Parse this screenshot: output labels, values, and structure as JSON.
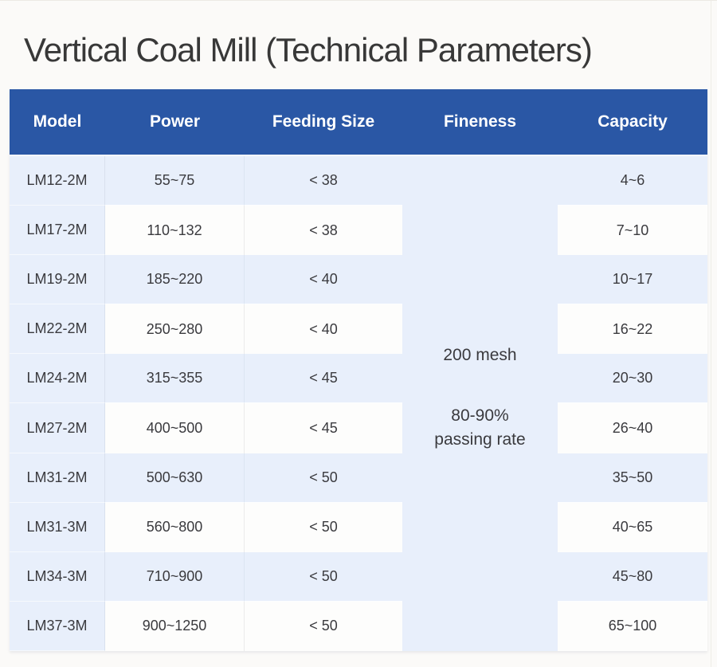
{
  "page": {
    "title": "Vertical Coal Mill (Technical Parameters)"
  },
  "colors": {
    "header_bg": "#2a57a5",
    "header_text": "#ffffff",
    "row_blue": "#e8effb",
    "row_white": "#fdfdfc",
    "body_text": "#3a3a3e",
    "title_text": "#383838"
  },
  "table": {
    "headers": [
      "Model",
      "Power",
      "Feeding Size",
      "Fineness",
      "Capacity"
    ],
    "fineness": {
      "mesh": "200 mesh",
      "passing_line1": "80-90%",
      "passing_line2": "passing rate"
    },
    "rows": [
      {
        "model": "LM12-2M",
        "power": "55~75",
        "feeding_size": "< 38",
        "capacity": "4~6"
      },
      {
        "model": "LM17-2M",
        "power": "110~132",
        "feeding_size": "< 38",
        "capacity": "7~10"
      },
      {
        "model": "LM19-2M",
        "power": "185~220",
        "feeding_size": "< 40",
        "capacity": "10~17"
      },
      {
        "model": "LM22-2M",
        "power": "250~280",
        "feeding_size": "< 40",
        "capacity": "16~22"
      },
      {
        "model": "LM24-2M",
        "power": "315~355",
        "feeding_size": "< 45",
        "capacity": "20~30"
      },
      {
        "model": "LM27-2M",
        "power": "400~500",
        "feeding_size": "< 45",
        "capacity": "26~40"
      },
      {
        "model": "LM31-2M",
        "power": "500~630",
        "feeding_size": "< 50",
        "capacity": "35~50"
      },
      {
        "model": "LM31-3M",
        "power": "560~800",
        "feeding_size": "< 50",
        "capacity": "40~65"
      },
      {
        "model": "LM34-3M",
        "power": "710~900",
        "feeding_size": "< 50",
        "capacity": "45~80"
      },
      {
        "model": "LM37-3M",
        "power": "900~1250",
        "feeding_size": "< 50",
        "capacity": "65~100"
      }
    ]
  }
}
